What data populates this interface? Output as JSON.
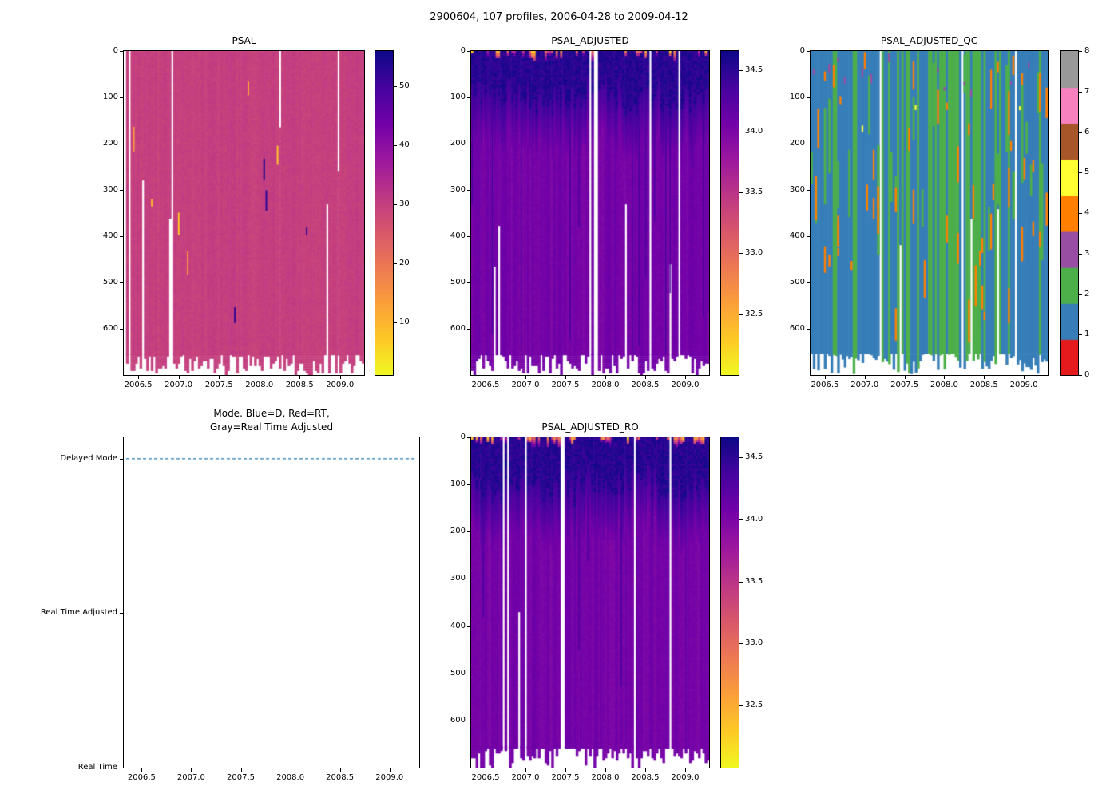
{
  "figure": {
    "title": "2900604, 107 profiles, 2006-04-28 to 2009-04-12",
    "background": "#ffffff"
  },
  "chart_data": [
    {
      "id": "psal",
      "type": "heatmap",
      "title": "PSAL",
      "n_profiles": 107,
      "x_range": [
        2006.32,
        2009.3
      ],
      "x_tick_values": [
        2006.5,
        2007.0,
        2007.5,
        2008.0,
        2008.5,
        2009.0
      ],
      "x_tick_labels": [
        "2006.5",
        "2007.0",
        "2007.5",
        "2008.0",
        "2008.5",
        "2009.0"
      ],
      "y_range": [
        0,
        700
      ],
      "y_tick_values": [
        0,
        100,
        200,
        300,
        400,
        500,
        600
      ],
      "y_tick_labels": [
        "0",
        "100",
        "200",
        "300",
        "400",
        "500",
        "600"
      ],
      "colorbar_range": [
        1,
        56
      ],
      "colorbar_tick_values": [
        10,
        20,
        30,
        40,
        50
      ],
      "colorbar_tick_labels": [
        "10",
        "20",
        "30",
        "40",
        "50"
      ],
      "colormap": "plasma_reversed",
      "dominant_value": 30,
      "anomaly_low_values": [
        3,
        15
      ],
      "anomaly_high_values": [
        52,
        56
      ],
      "missing_data_color": "#ffffff"
    },
    {
      "id": "psal_adjusted",
      "type": "heatmap",
      "title": "PSAL_ADJUSTED",
      "n_profiles": 107,
      "x_range": [
        2006.32,
        2009.3
      ],
      "x_tick_values": [
        2006.5,
        2007.0,
        2007.5,
        2008.0,
        2008.5,
        2009.0
      ],
      "x_tick_labels": [
        "2006.5",
        "2007.0",
        "2007.5",
        "2008.0",
        "2008.5",
        "2009.0"
      ],
      "y_range": [
        0,
        700
      ],
      "y_tick_values": [
        0,
        100,
        200,
        300,
        400,
        500,
        600
      ],
      "y_tick_labels": [
        "0",
        "100",
        "200",
        "300",
        "400",
        "500",
        "600"
      ],
      "colorbar_range": [
        32.0,
        34.66
      ],
      "colorbar_tick_values": [
        32.5,
        33.0,
        33.5,
        34.0,
        34.5
      ],
      "colorbar_tick_labels": [
        "32.5",
        "33.0",
        "33.5",
        "34.0",
        "34.5"
      ],
      "colormap": "plasma_reversed",
      "dominant_value": 34.05,
      "surface_anomaly_range": [
        32.3,
        33.8
      ],
      "subsurface_max_value": 34.55,
      "missing_data_color": "#ffffff"
    },
    {
      "id": "psal_adjusted_qc",
      "type": "categorical-heatmap",
      "title": "PSAL_ADJUSTED_QC",
      "n_profiles": 107,
      "x_range": [
        2006.32,
        2009.3
      ],
      "x_tick_values": [
        2006.5,
        2007.0,
        2007.5,
        2008.0,
        2008.5,
        2009.0
      ],
      "x_tick_labels": [
        "2006.5",
        "2007.0",
        "2007.5",
        "2008.0",
        "2008.5",
        "2009.0"
      ],
      "y_range": [
        0,
        700
      ],
      "y_tick_values": [
        0,
        100,
        200,
        300,
        400,
        500,
        600
      ],
      "y_tick_labels": [
        "0",
        "100",
        "200",
        "300",
        "400",
        "500",
        "600"
      ],
      "colorbar_tick_values": [
        0,
        1,
        2,
        3,
        4,
        5,
        6,
        7,
        8
      ],
      "colorbar_tick_labels": [
        "0",
        "1",
        "2",
        "3",
        "4",
        "5",
        "6",
        "7",
        "8"
      ],
      "qc_palette": [
        "#e41a1c",
        "#377eb8",
        "#4daf4a",
        "#984ea3",
        "#ff7f00",
        "#ffff33",
        "#a65628",
        "#f781bf",
        "#999999"
      ],
      "dominant_flag": 1,
      "frequent_flags": [
        1,
        2,
        4
      ],
      "missing_data_color": "#ffffff"
    },
    {
      "id": "mode",
      "type": "timeline",
      "title_line1": "Mode. Blue=D, Red=RT,",
      "title_line2": "Gray=Real Time Adjusted",
      "x_range": [
        2006.32,
        2009.3
      ],
      "x_tick_values": [
        2006.5,
        2007.0,
        2007.5,
        2008.0,
        2008.5,
        2009.0
      ],
      "x_tick_labels": [
        "2006.5",
        "2007.0",
        "2007.5",
        "2008.0",
        "2008.5",
        "2009.0"
      ],
      "y_categories": [
        "Delayed Mode",
        "Real Time Adjusted",
        "Real Time"
      ],
      "line_color": "#1f77b4",
      "line_style": "dashed",
      "line_at_category": "Delayed Mode"
    },
    {
      "id": "psal_adjusted_ro",
      "type": "heatmap",
      "title": "PSAL_ADJUSTED_RO",
      "n_profiles": 107,
      "x_range": [
        2006.32,
        2009.3
      ],
      "x_tick_values": [
        2006.5,
        2007.0,
        2007.5,
        2008.0,
        2008.5,
        2009.0
      ],
      "x_tick_labels": [
        "2006.5",
        "2007.0",
        "2007.5",
        "2008.0",
        "2008.5",
        "2009.0"
      ],
      "y_range": [
        0,
        700
      ],
      "y_tick_values": [
        0,
        100,
        200,
        300,
        400,
        500,
        600
      ],
      "y_tick_labels": [
        "0",
        "100",
        "200",
        "300",
        "400",
        "500",
        "600"
      ],
      "colorbar_range": [
        32.0,
        34.66
      ],
      "colorbar_tick_values": [
        32.5,
        33.0,
        33.5,
        34.0,
        34.5
      ],
      "colorbar_tick_labels": [
        "32.5",
        "33.0",
        "33.5",
        "34.0",
        "34.5"
      ],
      "colormap": "plasma_reversed",
      "dominant_value": 34.05,
      "surface_anomaly_range": [
        32.3,
        33.8
      ],
      "subsurface_max_value": 34.55,
      "missing_data_color": "#ffffff"
    }
  ]
}
